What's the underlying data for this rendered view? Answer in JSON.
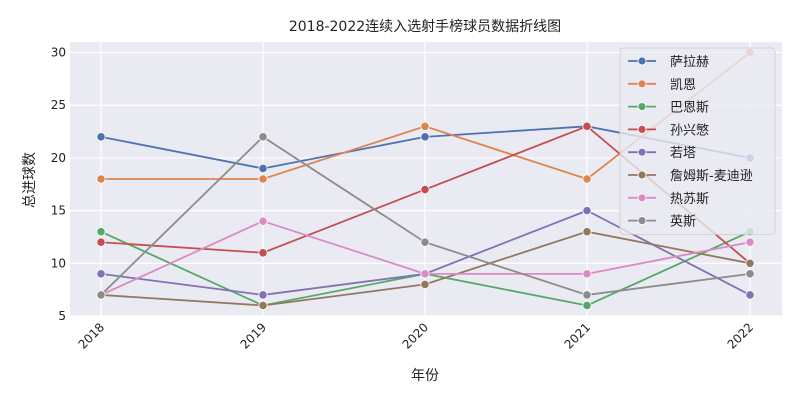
{
  "chart_data": {
    "type": "line",
    "title": "2018-2022连续入选射手榜球员数据折线图",
    "xlabel": "年份",
    "ylabel": "总进球数",
    "x": [
      "2018",
      "2019",
      "2020",
      "2021",
      "2022"
    ],
    "ylim": [
      5,
      31
    ],
    "yticks": [
      5,
      10,
      15,
      20,
      25,
      30
    ],
    "grid": true,
    "legend_position": "top-right",
    "series": [
      {
        "name": "萨拉赫",
        "color": "#4c72b0",
        "values": [
          22,
          19,
          22,
          23,
          20
        ]
      },
      {
        "name": "凯恩",
        "color": "#dd8452",
        "values": [
          18,
          18,
          23,
          18,
          30
        ]
      },
      {
        "name": "巴恩斯",
        "color": "#55a868",
        "values": [
          13,
          6,
          9,
          6,
          13
        ]
      },
      {
        "name": "孙兴慜",
        "color": "#c44e52",
        "values": [
          12,
          11,
          17,
          23,
          10
        ]
      },
      {
        "name": "若塔",
        "color": "#8172b3",
        "values": [
          9,
          7,
          9,
          15,
          7
        ]
      },
      {
        "name": "詹姆斯-麦迪逊",
        "color": "#937860",
        "values": [
          7,
          6,
          8,
          13,
          10
        ]
      },
      {
        "name": "热苏斯",
        "color": "#da8bc3",
        "values": [
          7,
          14,
          9,
          9,
          12
        ]
      },
      {
        "name": "英斯",
        "color": "#8c8c8c",
        "values": [
          7,
          22,
          12,
          7,
          9
        ]
      }
    ]
  }
}
